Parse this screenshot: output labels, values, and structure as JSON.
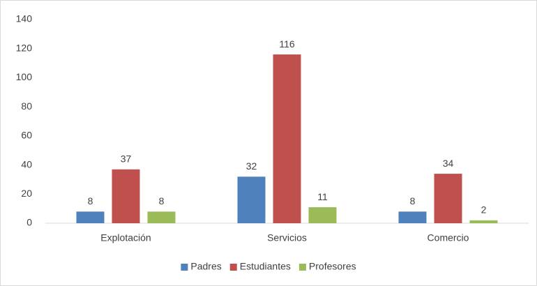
{
  "chart_data": {
    "type": "bar",
    "categories": [
      "Explotación",
      "Servicios",
      "Comercio"
    ],
    "series": [
      {
        "name": "Padres",
        "color": "#4f81bd",
        "values": [
          8,
          32,
          8
        ]
      },
      {
        "name": "Estudiantes",
        "color": "#c0504d",
        "values": [
          37,
          116,
          34
        ]
      },
      {
        "name": "Profesores",
        "color": "#9bbb59",
        "values": [
          8,
          11,
          2
        ]
      }
    ],
    "ylim": [
      0,
      140
    ],
    "yticks": [
      0,
      20,
      40,
      60,
      80,
      100,
      120,
      140
    ],
    "grid": false,
    "legend": "bottom"
  }
}
